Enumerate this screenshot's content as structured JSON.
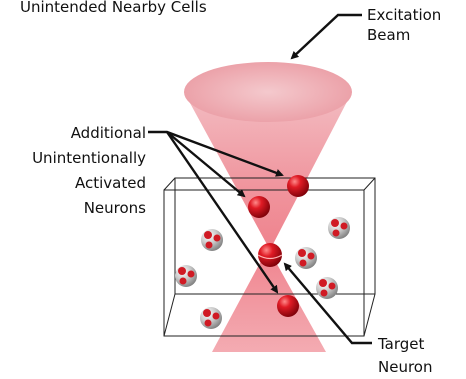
{
  "diagram": {
    "top_caption": "Unintended Nearby Cells",
    "excitation_label": [
      "Excitation",
      "Beam"
    ],
    "additional_label": [
      "Additional",
      "Unintentionally",
      "Activated",
      "Neurons"
    ],
    "target_label": [
      "Target",
      "Neuron"
    ]
  },
  "colors": {
    "beam": "#f07a84",
    "neuron": "#c8101e",
    "cell_gray": "#9a9a9a",
    "arrow": "#111111"
  }
}
